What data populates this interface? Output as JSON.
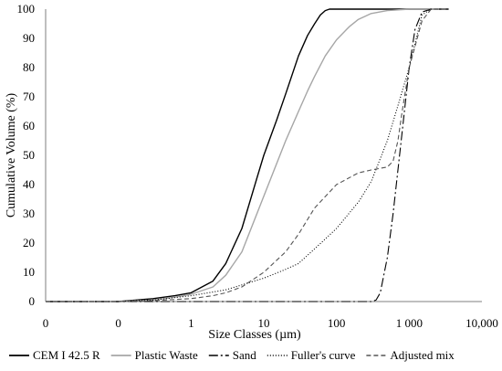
{
  "chart_data": {
    "type": "line",
    "title": "",
    "xlabel": "Size Classes (µm)",
    "ylabel": "Cumulative Volume (%)",
    "xscale": "log",
    "xlim": [
      0.01,
      10000
    ],
    "ylim": [
      0,
      100
    ],
    "grid": false,
    "legend_position": "bottom",
    "x_tick_labels": [
      "0",
      "0",
      "1",
      "10",
      "100",
      "1 000",
      "10,000"
    ],
    "y_tick_labels": [
      "0",
      "10",
      "20",
      "30",
      "40",
      "50",
      "60",
      "70",
      "80",
      "90",
      "100"
    ],
    "series": [
      {
        "name": "CEM I 42.5 R",
        "style": "solid",
        "color": "#000000",
        "x": [
          0.01,
          0.1,
          0.3,
          0.6,
          1,
          2,
          3,
          5,
          8,
          10,
          15,
          20,
          30,
          40,
          50,
          60,
          70,
          80,
          100,
          3500
        ],
        "y": [
          0,
          0,
          1,
          2,
          3,
          7,
          13,
          25,
          42,
          50,
          62,
          71,
          84,
          91,
          95,
          98,
          99.5,
          100,
          100,
          100
        ]
      },
      {
        "name": "Plastic Waste",
        "style": "solid",
        "color": "#a6a6a6",
        "x": [
          0.01,
          0.1,
          0.3,
          0.6,
          1,
          2,
          3,
          5,
          10,
          20,
          30,
          40,
          50,
          70,
          100,
          150,
          200,
          300,
          500,
          1000,
          3500
        ],
        "y": [
          0,
          0,
          0.5,
          1.5,
          2.5,
          5,
          9,
          17,
          36,
          55,
          65,
          72,
          77,
          84,
          89.5,
          94,
          96.5,
          98.5,
          99.5,
          100,
          100
        ]
      },
      {
        "name": "Sand",
        "style": "dash-dot",
        "color": "#000000",
        "x": [
          0.01,
          300,
          350,
          400,
          500,
          600,
          700,
          800,
          1000,
          1200,
          1500,
          2000,
          3500
        ],
        "y": [
          0,
          0,
          0.5,
          3,
          15,
          30,
          45,
          58,
          80,
          93,
          99,
          100,
          100
        ]
      },
      {
        "name": "Fuller's curve",
        "style": "dotted",
        "color": "#000000",
        "x": [
          0.01,
          0.1,
          0.3,
          1,
          3,
          10,
          20,
          30,
          50,
          100,
          200,
          300,
          500,
          700,
          1000,
          1500,
          2000
        ],
        "y": [
          0,
          0,
          0.5,
          2,
          4,
          8,
          11,
          13,
          18,
          25,
          34,
          41,
          55,
          67,
          80,
          98,
          100
        ]
      },
      {
        "name": "Adjusted mix",
        "style": "dashed",
        "color": "#555555",
        "x": [
          0.01,
          0.1,
          0.3,
          1,
          2,
          3,
          5,
          10,
          20,
          30,
          50,
          100,
          200,
          300,
          500,
          600,
          700,
          800,
          1000,
          1500,
          2000,
          3500
        ],
        "y": [
          0,
          0,
          0.3,
          1,
          2,
          3,
          5,
          10,
          17,
          23,
          32,
          40,
          44,
          45,
          46,
          48,
          55,
          65,
          80,
          96,
          100,
          100
        ]
      }
    ]
  }
}
